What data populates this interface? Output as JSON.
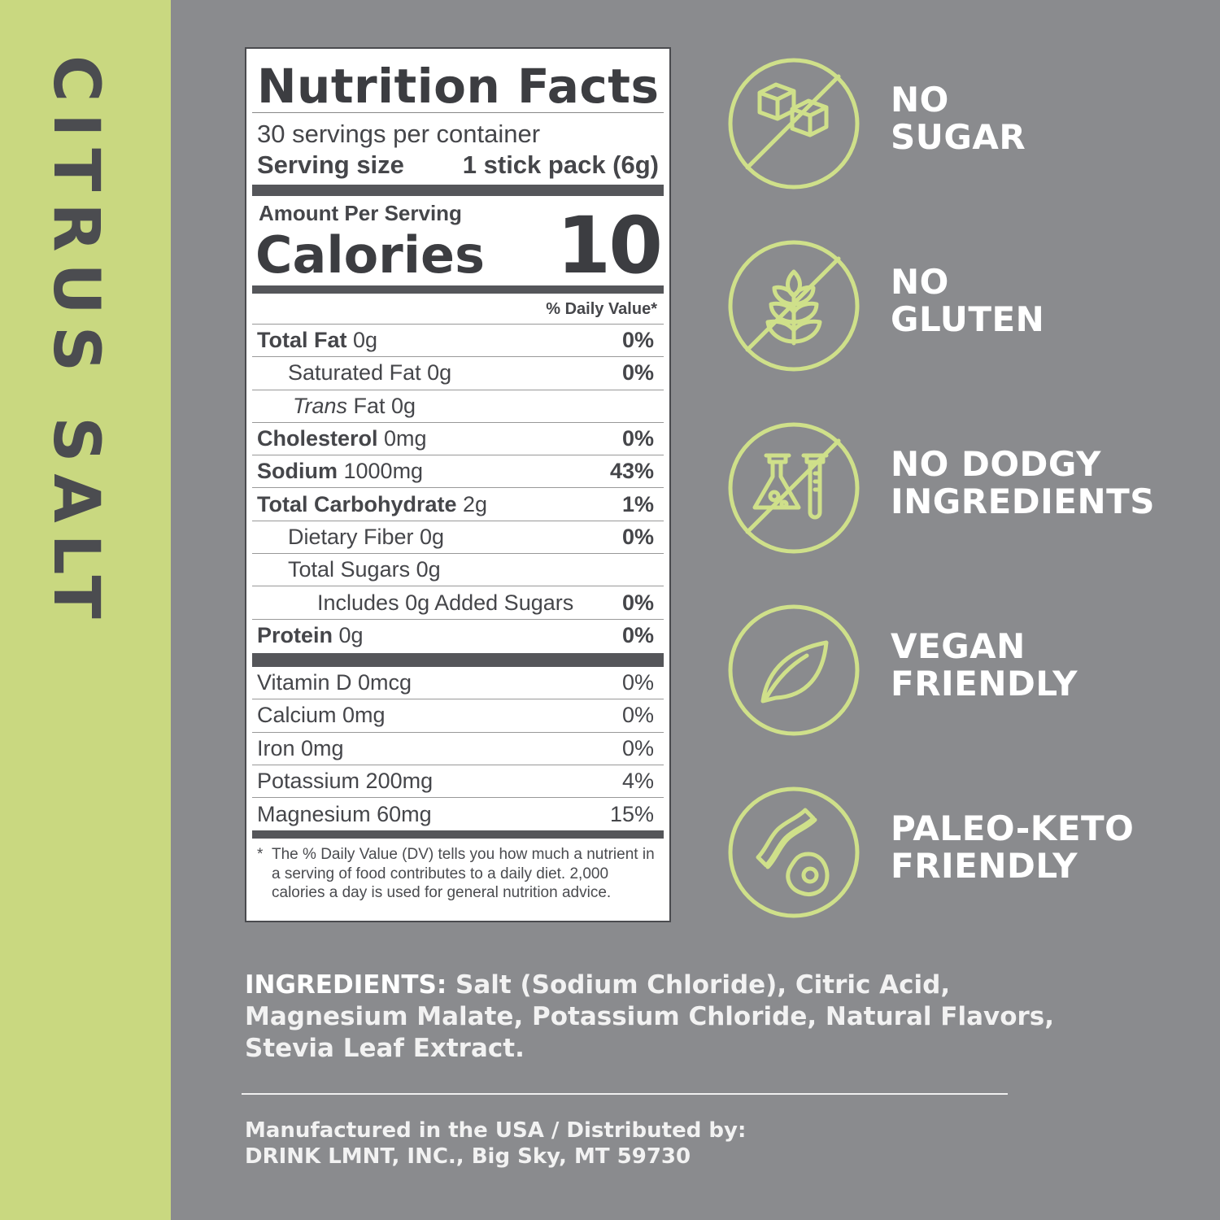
{
  "flavor": "CITRUS SALT",
  "colors": {
    "accent": "#c9d880",
    "background": "#8a8b8e",
    "label_text": "#45464a"
  },
  "nutrition": {
    "title": "Nutrition Facts",
    "servings": "30 servings per container",
    "serving_size_label": "Serving size",
    "serving_size_value": "1 stick pack (6g)",
    "amount_per_serving": "Amount Per Serving",
    "calories_label": "Calories",
    "calories_value": "10",
    "dv_header": "% Daily Value*",
    "rows": [
      {
        "bold": "Total Fat",
        "rest": " 0g",
        "dv": "0%",
        "indent": 0
      },
      {
        "bold": "",
        "rest": "Saturated Fat 0g",
        "dv": "0%",
        "indent": 1
      },
      {
        "italic": "Trans",
        "rest": " Fat 0g",
        "dv": "",
        "indent": 1
      },
      {
        "bold": "Cholesterol",
        "rest": " 0mg",
        "dv": "0%",
        "indent": 0
      },
      {
        "bold": "Sodium",
        "rest": " 1000mg",
        "dv": "43%",
        "indent": 0
      },
      {
        "bold": "Total Carbohydrate",
        "rest": " 2g",
        "dv": "1%",
        "indent": 0
      },
      {
        "bold": "",
        "rest": "Dietary Fiber 0g",
        "dv": "0%",
        "indent": 1
      },
      {
        "bold": "",
        "rest": "Total Sugars 0g",
        "dv": "",
        "indent": 1
      },
      {
        "bold": "",
        "rest": "Includes 0g Added Sugars",
        "dv": "0%",
        "indent": 2
      },
      {
        "bold": "Protein",
        "rest": " 0g",
        "dv": "0%",
        "indent": 0
      }
    ],
    "vitamins": [
      {
        "name": "Vitamin D 0mcg",
        "dv": "0%"
      },
      {
        "name": "Calcium 0mg",
        "dv": "0%"
      },
      {
        "name": "Iron 0mg",
        "dv": "0%"
      },
      {
        "name": "Potassium 200mg",
        "dv": "4%"
      },
      {
        "name": "Magnesium 60mg",
        "dv": "15%"
      }
    ],
    "footnote_mark": "*",
    "footnote": "The % Daily Value (DV) tells you how much a nutrient in a serving of food contributes to a daily diet. 2,000 calories a day is used for general nutrition advice."
  },
  "claims": [
    {
      "icon": "sugar-cubes-crossed-icon",
      "line1": "NO",
      "line2": "SUGAR"
    },
    {
      "icon": "wheat-crossed-icon",
      "line1": "NO",
      "line2": "GLUTEN"
    },
    {
      "icon": "lab-flask-crossed-icon",
      "line1": "NO DODGY",
      "line2": "INGREDIENTS"
    },
    {
      "icon": "leaf-icon",
      "line1": "VEGAN",
      "line2": "FRIENDLY"
    },
    {
      "icon": "bacon-avocado-icon",
      "line1": "PALEO-KETO",
      "line2": "FRIENDLY"
    }
  ],
  "ingredients": {
    "label": "INGREDIENTS:",
    "text": " Salt (Sodium Chloride), Citric Acid, Magnesium Malate, Potassium Chloride, Natural Flavors, Stevia Leaf Extract."
  },
  "manufacturer": {
    "line1": "Manufactured in the USA / Distributed by:",
    "line2": "DRINK LMNT, INC., Big Sky, MT 59730"
  }
}
